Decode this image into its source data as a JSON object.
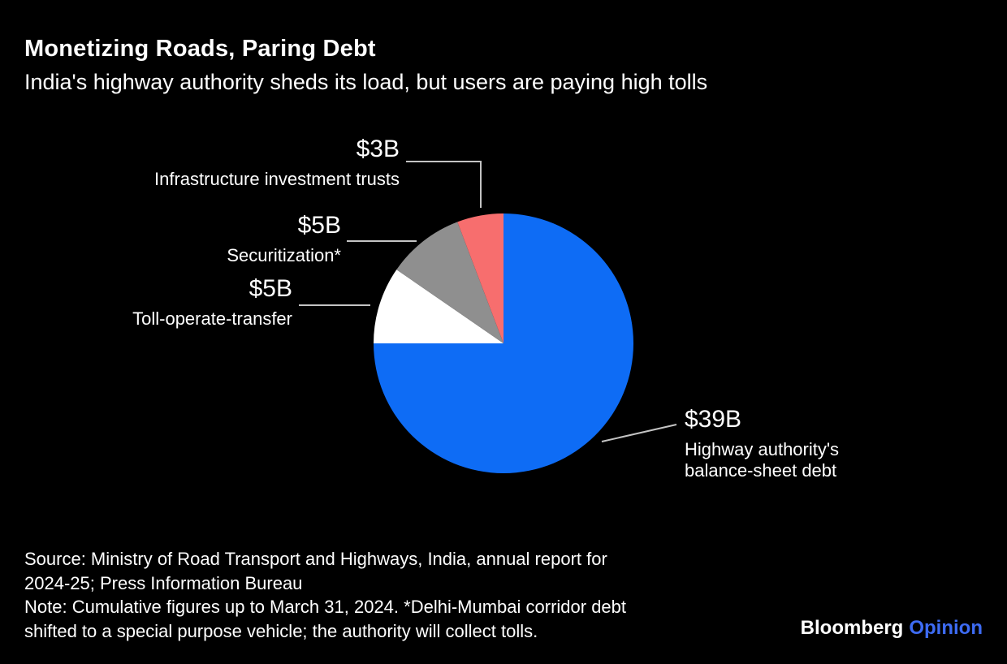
{
  "header": {
    "title": "Monetizing Roads, Paring Debt",
    "subtitle": "India's highway authority sheds its load, but users are paying high tolls"
  },
  "chart_data": {
    "type": "pie",
    "title": "Monetizing Roads, Paring Debt",
    "subtitle": "India's highway authority sheds its load, but users are paying high tolls",
    "unit": "$B (US dollars, billions)",
    "total": 52,
    "start_angle_deg": 0,
    "direction": "clockwise-from-top",
    "slices": [
      {
        "label": "Highway authority's balance-sheet debt",
        "value": 39,
        "value_label": "$39B",
        "color": "#0e6cf5"
      },
      {
        "label": "Toll-operate-transfer",
        "value": 5,
        "value_label": "$5B",
        "color": "#ffffff"
      },
      {
        "label": "Securitization*",
        "value": 5,
        "value_label": "$5B",
        "color": "#8f8f8f"
      },
      {
        "label": "Infrastructure investment trusts",
        "value": 3,
        "value_label": "$3B",
        "color": "#f76e6e"
      }
    ],
    "legend": "none",
    "labels_style": "external callouts with leader lines"
  },
  "footer": {
    "lines": [
      "Source: Ministry of Road Transport and Highways, India, annual report for",
      "2024-25; Press Information Bureau",
      "Note: Cumulative figures up to March 31, 2024. *Delhi-Mumbai corridor debt",
      "shifted to a special purpose vehicle; the authority will collect tolls."
    ]
  },
  "branding": {
    "name": "Bloomberg",
    "unit_name": "Opinion",
    "opinion_color": "#3d6bf3"
  }
}
